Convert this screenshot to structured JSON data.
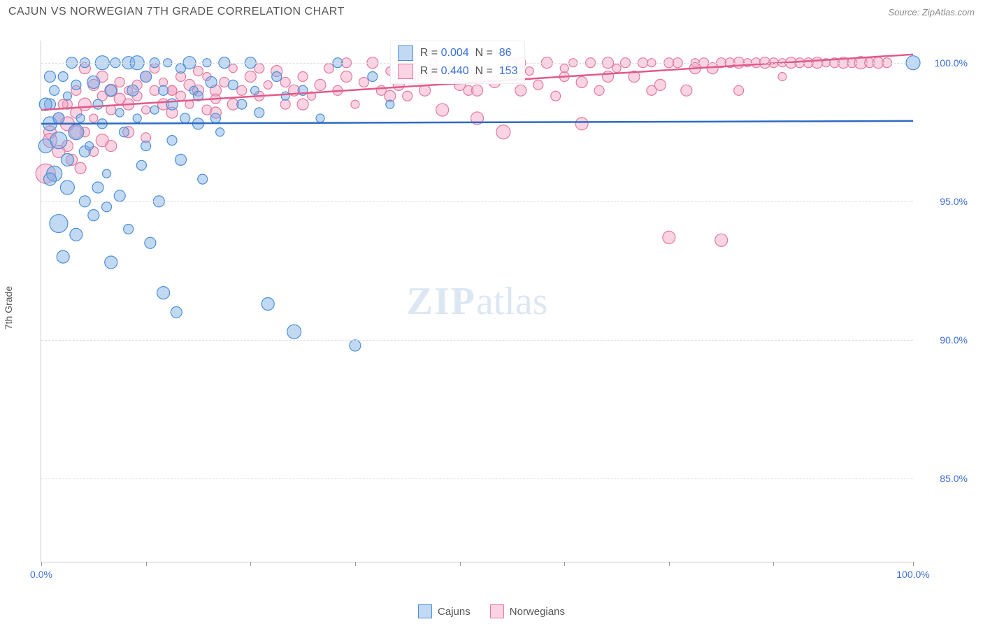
{
  "header": {
    "title": "CAJUN VS NORWEGIAN 7TH GRADE CORRELATION CHART",
    "source": "Source: ZipAtlas.com"
  },
  "chart": {
    "type": "scatter",
    "ylabel": "7th Grade",
    "xlim": [
      0,
      100
    ],
    "ylim": [
      82,
      100.8
    ],
    "ytick_values": [
      85,
      90,
      95,
      100
    ],
    "ytick_labels": [
      "85.0%",
      "90.0%",
      "95.0%",
      "100.0%"
    ],
    "xtick_values": [
      0,
      12,
      24,
      36,
      48,
      60,
      72,
      84,
      100
    ],
    "xtick_labels_shown": {
      "0": "0.0%",
      "100": "100.0%"
    },
    "watermark": "ZIPatlas",
    "colors": {
      "cajuns_fill": "rgba(120,170,230,0.45)",
      "cajuns_stroke": "#4d8fd6",
      "norwegians_fill": "rgba(245,160,190,0.45)",
      "norwegians_stroke": "#e37aa0",
      "cajuns_line": "#2d6bc2",
      "norwegians_line": "#e05a8a",
      "grid": "#dddddd",
      "axis": "#cccccc",
      "tick_text": "#3b6fd6"
    },
    "marker_radius_range": [
      6,
      13
    ],
    "regression": {
      "cajuns": {
        "y_at_x0": 97.8,
        "y_at_x100": 97.9
      },
      "norwegians": {
        "y_at_x0": 98.3,
        "y_at_x100": 100.3
      }
    },
    "legend_stats": [
      {
        "series": "cajuns",
        "R": "0.004",
        "N": "86"
      },
      {
        "series": "norwegians",
        "R": "0.440",
        "N": "153"
      }
    ],
    "legend_bottom": [
      {
        "label": "Cajuns",
        "color_key": "cajuns"
      },
      {
        "label": "Norwegians",
        "color_key": "norwegians"
      }
    ],
    "series": {
      "cajuns": [
        [
          1,
          97.8,
          10
        ],
        [
          1,
          98.5,
          8
        ],
        [
          1.5,
          99,
          7
        ],
        [
          2,
          97.2,
          12
        ],
        [
          2,
          98,
          8
        ],
        [
          2.5,
          99.5,
          7
        ],
        [
          3,
          96.5,
          9
        ],
        [
          3,
          98.8,
          6
        ],
        [
          3.5,
          100,
          8
        ],
        [
          4,
          97.5,
          11
        ],
        [
          4,
          99.2,
          7
        ],
        [
          4.5,
          98,
          6
        ],
        [
          5,
          96.8,
          8
        ],
        [
          5,
          100,
          7
        ],
        [
          5.5,
          97,
          6
        ],
        [
          6,
          99.3,
          9
        ],
        [
          6,
          94.5,
          8
        ],
        [
          6.5,
          98.5,
          7
        ],
        [
          7,
          100,
          10
        ],
        [
          7,
          97.8,
          7
        ],
        [
          7.5,
          96,
          6
        ],
        [
          8,
          99,
          8
        ],
        [
          8,
          92.8,
          9
        ],
        [
          8.5,
          100,
          7
        ],
        [
          9,
          98.2,
          6
        ],
        [
          9,
          95.2,
          8
        ],
        [
          9.5,
          97.5,
          7
        ],
        [
          10,
          100,
          9
        ],
        [
          10,
          94,
          7
        ],
        [
          10.5,
          99,
          8
        ],
        [
          11,
          98,
          6
        ],
        [
          11,
          100,
          10
        ],
        [
          11.5,
          96.3,
          7
        ],
        [
          12,
          99.5,
          8
        ],
        [
          12,
          97,
          7
        ],
        [
          12.5,
          93.5,
          8
        ],
        [
          13,
          100,
          7
        ],
        [
          13,
          98.3,
          6
        ],
        [
          13.5,
          95,
          8
        ],
        [
          14,
          99,
          7
        ],
        [
          14,
          91.7,
          9
        ],
        [
          14.5,
          100,
          6
        ],
        [
          15,
          98.5,
          8
        ],
        [
          15,
          97.2,
          7
        ],
        [
          15.5,
          91,
          8
        ],
        [
          16,
          99.8,
          7
        ],
        [
          16,
          96.5,
          8
        ],
        [
          16.5,
          98,
          7
        ],
        [
          17,
          100,
          9
        ],
        [
          17.5,
          99,
          6
        ],
        [
          18,
          97.8,
          8
        ],
        [
          18,
          98.8,
          7
        ],
        [
          18.5,
          95.8,
          7
        ],
        [
          19,
          100,
          6
        ],
        [
          19.5,
          99.3,
          8
        ],
        [
          20,
          98,
          7
        ],
        [
          20.5,
          97.5,
          6
        ],
        [
          21,
          100,
          8
        ],
        [
          22,
          99.2,
          7
        ],
        [
          23,
          98.5,
          7
        ],
        [
          24,
          100,
          8
        ],
        [
          24.5,
          99,
          6
        ],
        [
          25,
          98.2,
          7
        ],
        [
          26,
          91.3,
          9
        ],
        [
          27,
          99.5,
          7
        ],
        [
          28,
          98.8,
          6
        ],
        [
          29,
          90.3,
          10
        ],
        [
          30,
          99,
          7
        ],
        [
          32,
          98,
          6
        ],
        [
          34,
          100,
          7
        ],
        [
          36,
          89.8,
          8
        ],
        [
          38,
          99.5,
          7
        ],
        [
          40,
          98.5,
          6
        ],
        [
          2,
          94.2,
          13
        ],
        [
          3,
          95.5,
          10
        ],
        [
          4,
          93.8,
          9
        ],
        [
          5,
          95,
          8
        ],
        [
          1.5,
          96,
          11
        ],
        [
          2.5,
          93,
          9
        ],
        [
          6.5,
          95.5,
          8
        ],
        [
          7.5,
          94.8,
          7
        ],
        [
          1,
          95.8,
          9
        ],
        [
          0.5,
          97,
          10
        ],
        [
          0.5,
          98.5,
          9
        ],
        [
          1,
          99.5,
          8
        ],
        [
          100,
          100,
          10
        ]
      ],
      "norwegians": [
        [
          1,
          97.5,
          9
        ],
        [
          2,
          98,
          8
        ],
        [
          3,
          98.5,
          7
        ],
        [
          3,
          97.8,
          10
        ],
        [
          4,
          98.2,
          8
        ],
        [
          4,
          99,
          7
        ],
        [
          5,
          98.5,
          9
        ],
        [
          5,
          97.5,
          7
        ],
        [
          6,
          99.2,
          8
        ],
        [
          6,
          98,
          6
        ],
        [
          7,
          98.8,
          7
        ],
        [
          7,
          99.5,
          8
        ],
        [
          8,
          98.3,
          7
        ],
        [
          8,
          99,
          9
        ],
        [
          9,
          98.7,
          8
        ],
        [
          9,
          99.3,
          7
        ],
        [
          10,
          99,
          6
        ],
        [
          10,
          98.5,
          8
        ],
        [
          11,
          99.2,
          7
        ],
        [
          11,
          98.8,
          7
        ],
        [
          12,
          99.5,
          8
        ],
        [
          12,
          98.3,
          6
        ],
        [
          13,
          99,
          7
        ],
        [
          13,
          99.8,
          7
        ],
        [
          14,
          98.5,
          8
        ],
        [
          14,
          99.3,
          6
        ],
        [
          15,
          99,
          7
        ],
        [
          15,
          98.2,
          8
        ],
        [
          16,
          99.5,
          7
        ],
        [
          16,
          98.8,
          7
        ],
        [
          17,
          99.2,
          8
        ],
        [
          17,
          98.5,
          6
        ],
        [
          18,
          99.7,
          7
        ],
        [
          18,
          99,
          8
        ],
        [
          19,
          98.3,
          7
        ],
        [
          19,
          99.5,
          6
        ],
        [
          20,
          99,
          8
        ],
        [
          20,
          98.7,
          7
        ],
        [
          21,
          99.3,
          7
        ],
        [
          22,
          98.5,
          8
        ],
        [
          22,
          99.8,
          6
        ],
        [
          23,
          99,
          7
        ],
        [
          24,
          99.5,
          8
        ],
        [
          25,
          98.8,
          7
        ],
        [
          26,
          99.2,
          6
        ],
        [
          27,
          99.7,
          8
        ],
        [
          28,
          98.5,
          7
        ],
        [
          28,
          99.3,
          7
        ],
        [
          29,
          99,
          8
        ],
        [
          30,
          99.5,
          7
        ],
        [
          31,
          98.8,
          6
        ],
        [
          32,
          99.2,
          8
        ],
        [
          33,
          99.8,
          7
        ],
        [
          34,
          99,
          7
        ],
        [
          35,
          99.5,
          8
        ],
        [
          36,
          98.5,
          6
        ],
        [
          37,
          99.3,
          7
        ],
        [
          38,
          100,
          8
        ],
        [
          39,
          99,
          7
        ],
        [
          40,
          99.7,
          6
        ],
        [
          41,
          99.2,
          8
        ],
        [
          42,
          98.8,
          7
        ],
        [
          43,
          99.5,
          7
        ],
        [
          44,
          99,
          8
        ],
        [
          45,
          100,
          6
        ],
        [
          46,
          98.3,
          9
        ],
        [
          47,
          99.8,
          7
        ],
        [
          48,
          99.2,
          8
        ],
        [
          49,
          99,
          7
        ],
        [
          50,
          99.5,
          6
        ],
        [
          50,
          98,
          9
        ],
        [
          52,
          99.3,
          8
        ],
        [
          53,
          97.5,
          10
        ],
        [
          54,
          100,
          7
        ],
        [
          55,
          99,
          8
        ],
        [
          56,
          99.7,
          6
        ],
        [
          57,
          99.2,
          7
        ],
        [
          58,
          100,
          8
        ],
        [
          59,
          98.8,
          7
        ],
        [
          60,
          99.5,
          7
        ],
        [
          61,
          100,
          6
        ],
        [
          62,
          97.8,
          9
        ],
        [
          62,
          99.3,
          8
        ],
        [
          63,
          100,
          7
        ],
        [
          64,
          99,
          7
        ],
        [
          65,
          100,
          8
        ],
        [
          66,
          99.8,
          6
        ],
        [
          67,
          100,
          7
        ],
        [
          68,
          99.5,
          8
        ],
        [
          69,
          100,
          7
        ],
        [
          70,
          100,
          6
        ],
        [
          71,
          99.2,
          8
        ],
        [
          72,
          100,
          7
        ],
        [
          73,
          100,
          7
        ],
        [
          74,
          99,
          8
        ],
        [
          75,
          100,
          6
        ],
        [
          76,
          100,
          7
        ],
        [
          77,
          99.8,
          8
        ],
        [
          78,
          100,
          7
        ],
        [
          79,
          100,
          7
        ],
        [
          80,
          100,
          8
        ],
        [
          81,
          100,
          6
        ],
        [
          82,
          100,
          7
        ],
        [
          83,
          100,
          8
        ],
        [
          84,
          100,
          7
        ],
        [
          85,
          100,
          6
        ],
        [
          86,
          100,
          8
        ],
        [
          87,
          100,
          7
        ],
        [
          88,
          100,
          7
        ],
        [
          89,
          100,
          8
        ],
        [
          90,
          100,
          6
        ],
        [
          91,
          100,
          7
        ],
        [
          92,
          100,
          8
        ],
        [
          93,
          100,
          7
        ],
        [
          72,
          93.7,
          9
        ],
        [
          78,
          93.6,
          9
        ],
        [
          0.5,
          96,
          14
        ],
        [
          1,
          97.2,
          10
        ],
        [
          2,
          96.8,
          9
        ],
        [
          3,
          97,
          8
        ],
        [
          4,
          97.5,
          9
        ],
        [
          94,
          100,
          9
        ],
        [
          3.5,
          96.5,
          8
        ],
        [
          95,
          100,
          7
        ],
        [
          96,
          100,
          8
        ],
        [
          2.5,
          98.5,
          7
        ],
        [
          5,
          99.8,
          8
        ],
        [
          7,
          97.2,
          9
        ],
        [
          10,
          97.5,
          8
        ],
        [
          15,
          99,
          7
        ],
        [
          20,
          98.2,
          8
        ],
        [
          25,
          99.8,
          7
        ],
        [
          30,
          98.5,
          8
        ],
        [
          35,
          100,
          7
        ],
        [
          40,
          98.8,
          8
        ],
        [
          45,
          99.5,
          7
        ],
        [
          50,
          99,
          8
        ],
        [
          55,
          100,
          7
        ],
        [
          60,
          99.8,
          6
        ],
        [
          65,
          99.5,
          8
        ],
        [
          70,
          99,
          7
        ],
        [
          75,
          99.8,
          8
        ],
        [
          80,
          99,
          7
        ],
        [
          85,
          99.5,
          6
        ],
        [
          97,
          100,
          7
        ],
        [
          4.5,
          96.2,
          8
        ],
        [
          6,
          96.8,
          7
        ],
        [
          8,
          97,
          8
        ],
        [
          12,
          97.3,
          7
        ]
      ]
    }
  }
}
